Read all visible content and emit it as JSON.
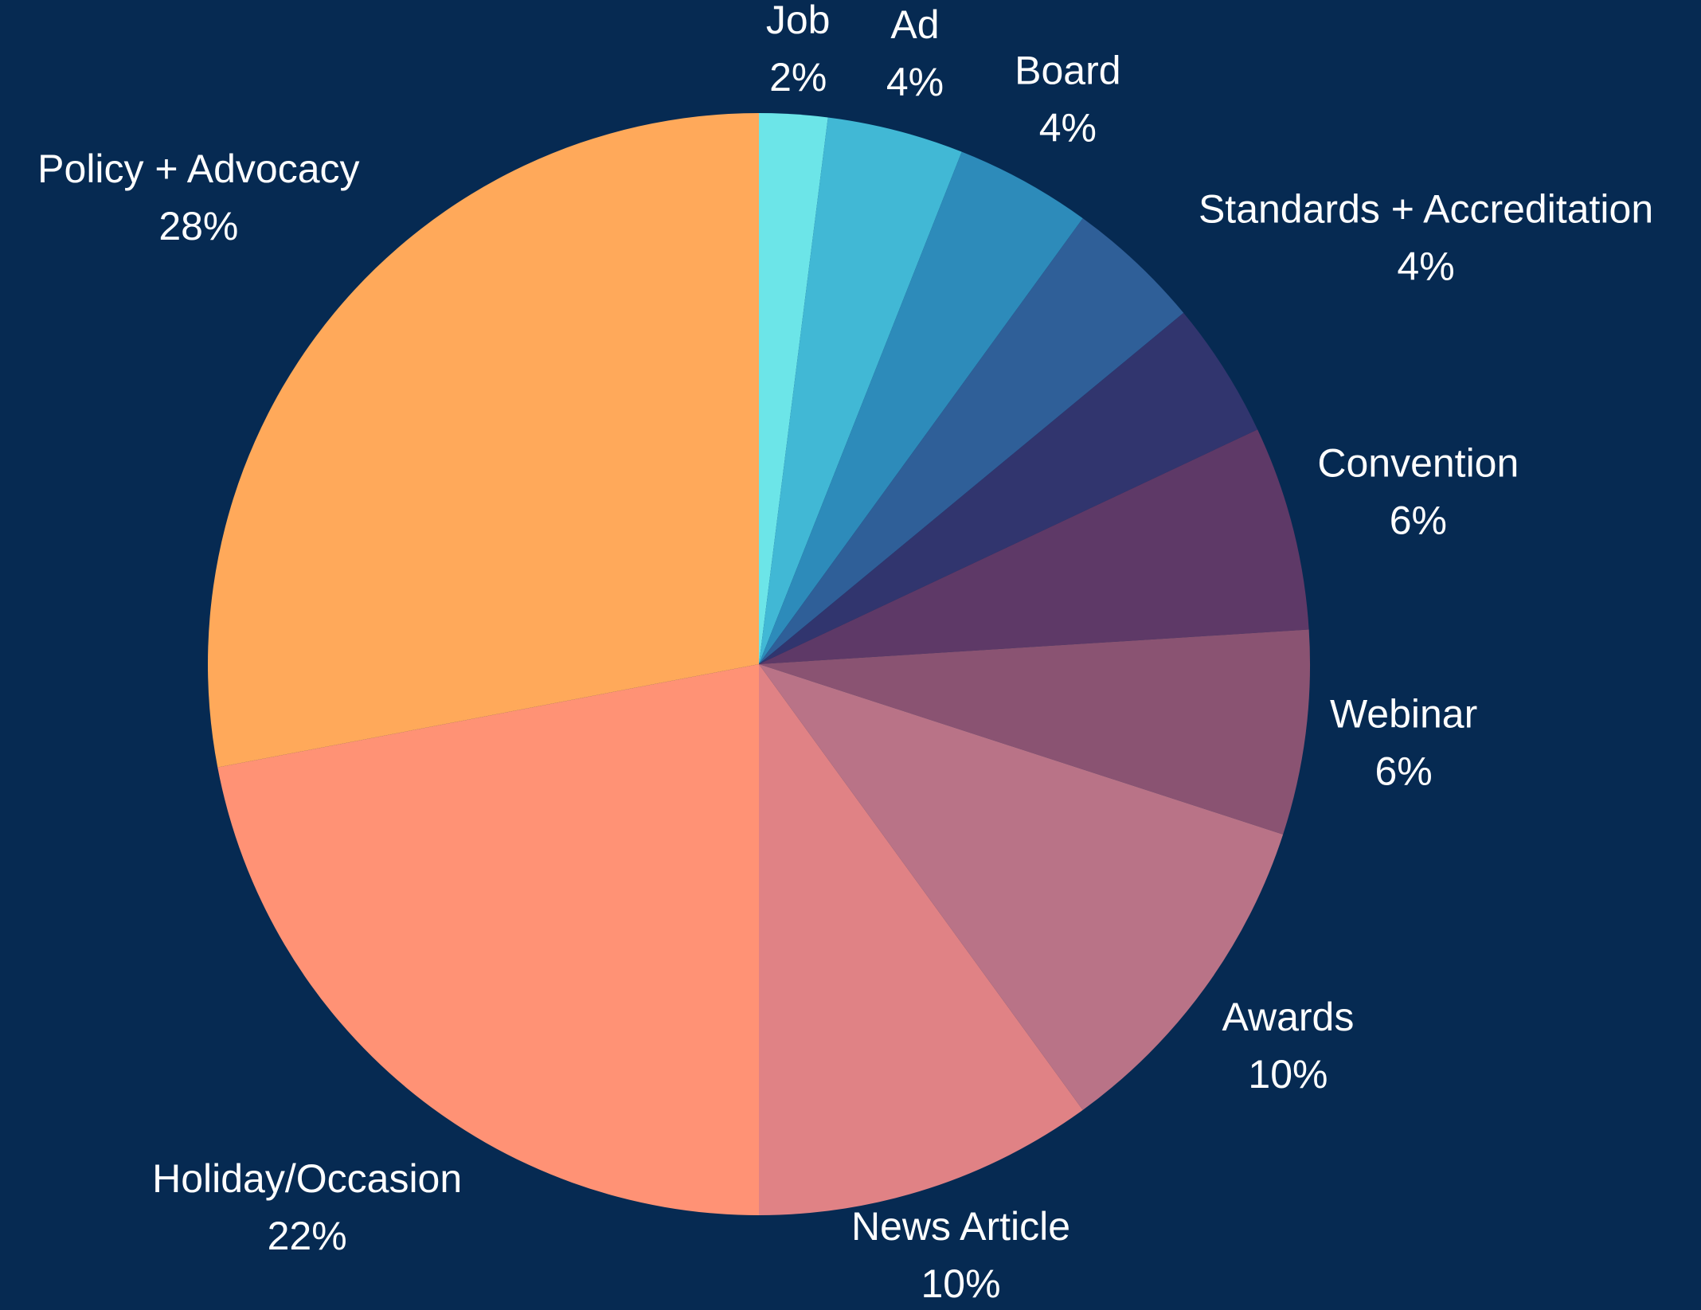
{
  "chart_data": {
    "type": "pie",
    "categories": [
      "Job",
      "Ad",
      "Board",
      null,
      "Standards + Accreditation",
      "Convention",
      "Webinar",
      "Awards",
      "News Article",
      "Holiday/Occasion",
      "Policy + Advocacy"
    ],
    "values": [
      2,
      4,
      4,
      4,
      4,
      6,
      6,
      10,
      10,
      22,
      28
    ],
    "value_labels": [
      "2%",
      "4%",
      "4%",
      null,
      "4%",
      "6%",
      "6%",
      "10%",
      "10%",
      "22%",
      "28%"
    ],
    "colors": [
      "#6ce5e8",
      "#41b8d5",
      "#2d8bba",
      "#2f5f98",
      "#31356e",
      "#5e3967",
      "#8a5372",
      "#b97387",
      "#e08285",
      "#ff9275",
      "#ffa95a"
    ],
    "background": "#062a52"
  }
}
